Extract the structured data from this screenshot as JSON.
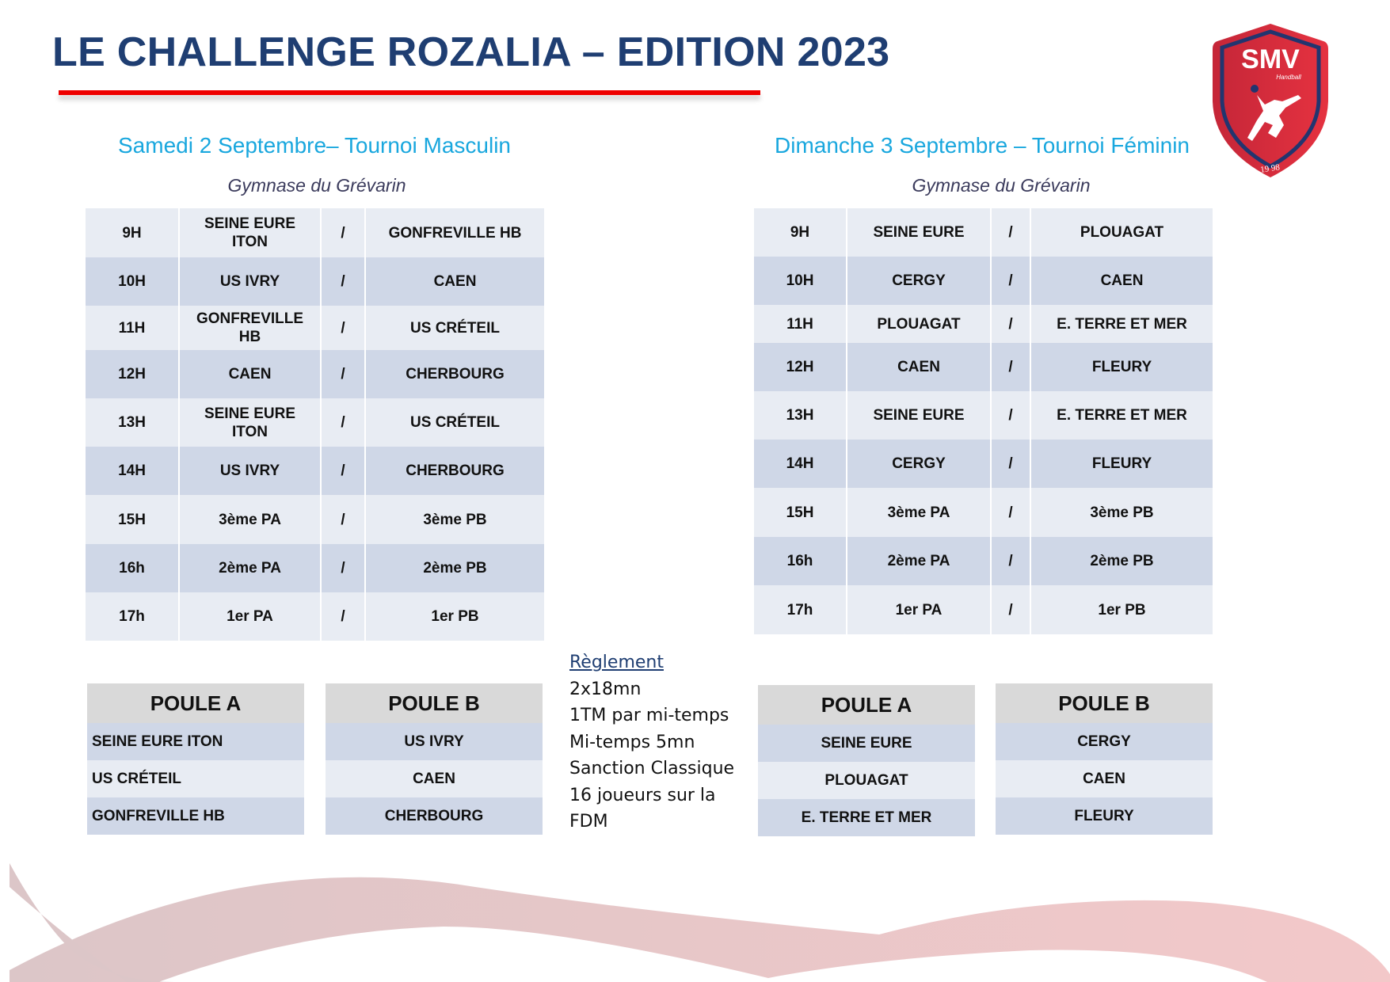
{
  "header": {
    "title": "LE CHALLENGE ROZALIA – EDITION 2023",
    "logo_text": "SMV",
    "logo_subtext": "Handball",
    "logo_year": "19 98"
  },
  "colors": {
    "title": "#1f3e72",
    "accent_line": "#ee0000",
    "subtitle": "#19a7de",
    "row_light": "#e8ecf3",
    "row_dark": "#cfd7e7",
    "poule_header": "#d9d9d9"
  },
  "masculin": {
    "subtitle": "Samedi 2 Septembre– Tournoi Masculin",
    "venue": "Gymnase du Grévarin",
    "matches": [
      {
        "time": "9H",
        "home": "SEINE EURE ITON",
        "sep": "/",
        "away": "GONFREVILLE HB"
      },
      {
        "time": "10H",
        "home": "US IVRY",
        "sep": "/",
        "away": "CAEN"
      },
      {
        "time": "11H",
        "home": "GONFREVILLE HB",
        "sep": "/",
        "away": "US CRÉTEIL"
      },
      {
        "time": "12H",
        "home": "CAEN",
        "sep": "/",
        "away": "CHERBOURG"
      },
      {
        "time": "13H",
        "home": "SEINE EURE ITON",
        "sep": "/",
        "away": "US CRÉTEIL"
      },
      {
        "time": "14H",
        "home": "US IVRY",
        "sep": "/",
        "away": "CHERBOURG"
      },
      {
        "time": "15H",
        "home": "3ème PA",
        "sep": "/",
        "away": "3ème PB"
      },
      {
        "time": "16h",
        "home": "2ème PA",
        "sep": "/",
        "away": "2ème PB"
      },
      {
        "time": "17h",
        "home": "1er PA",
        "sep": "/",
        "away": "1er PB"
      }
    ],
    "poules": [
      {
        "title": "POULE A",
        "teams": [
          "SEINE EURE ITON",
          "US CRÉTEIL",
          "GONFREVILLE HB"
        ]
      },
      {
        "title": "POULE B",
        "teams": [
          "US IVRY",
          "CAEN",
          "CHERBOURG"
        ]
      }
    ]
  },
  "feminin": {
    "subtitle": "Dimanche 3 Septembre – Tournoi Féminin",
    "venue": "Gymnase du Grévarin",
    "matches": [
      {
        "time": "9H",
        "home": "SEINE EURE",
        "sep": "/",
        "away": "PLOUAGAT"
      },
      {
        "time": "10H",
        "home": "CERGY",
        "sep": "/",
        "away": "CAEN"
      },
      {
        "time": "11H",
        "home": "PLOUAGAT",
        "sep": "/",
        "away": "E. TERRE ET MER"
      },
      {
        "time": "12H",
        "home": "CAEN",
        "sep": "/",
        "away": "FLEURY"
      },
      {
        "time": "13H",
        "home": "SEINE EURE",
        "sep": "/",
        "away": "E. TERRE ET MER"
      },
      {
        "time": "14H",
        "home": "CERGY",
        "sep": "/",
        "away": "FLEURY"
      },
      {
        "time": "15H",
        "home": "3ème PA",
        "sep": "/",
        "away": "3ème PB"
      },
      {
        "time": "16h",
        "home": "2ème PA",
        "sep": "/",
        "away": "2ème PB"
      },
      {
        "time": "17h",
        "home": "1er PA",
        "sep": "/",
        "away": "1er PB"
      }
    ],
    "poules": [
      {
        "title": "POULE A",
        "teams": [
          "SEINE EURE",
          "PLOUAGAT",
          "E. TERRE ET MER"
        ]
      },
      {
        "title": "POULE B",
        "teams": [
          "CERGY",
          "CAEN",
          "FLEURY"
        ]
      }
    ]
  },
  "reglement": {
    "heading": "Règlement",
    "lines": [
      "2x18mn",
      "1TM par mi-temps",
      "Mi-temps 5mn",
      "Sanction Classique",
      "16 joueurs sur la",
      "FDM"
    ]
  }
}
